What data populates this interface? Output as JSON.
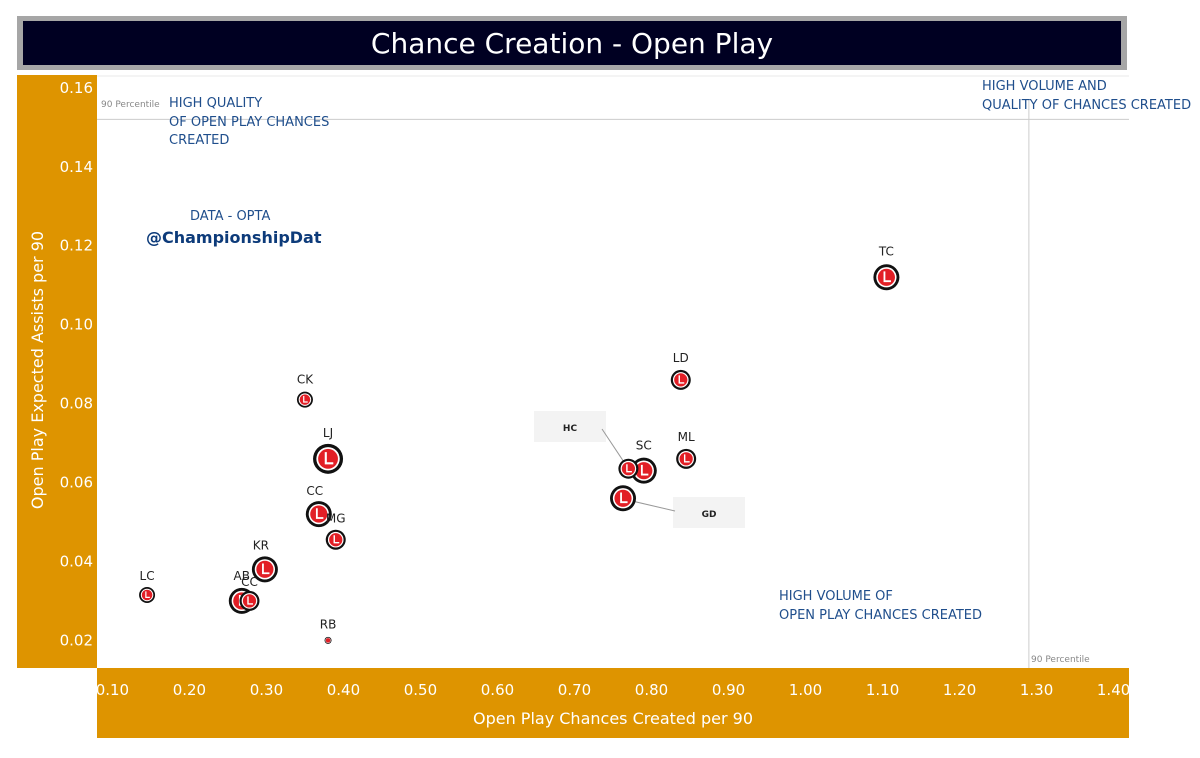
{
  "title": "Chance Creation - Open Play",
  "colors": {
    "axis_band": "#de9400",
    "title_bg": "#000022",
    "title_border": "#a6a6a6",
    "annotation": "#1f4e8c",
    "marker": "#e21f26"
  },
  "annotations": {
    "top_left": [
      "HIGH QUALITY",
      "OF OPEN PLAY CHANCES",
      "CREATED"
    ],
    "top_right": [
      "HIGH VOLUME AND",
      "QUALITY OF CHANCES CREATED"
    ],
    "bottom_right": [
      "HIGH VOLUME OF",
      "OPEN PLAY CHANCES CREATED"
    ],
    "source": "DATA - OPTA",
    "handle": "@ChampionshipDat",
    "percentile_label_y": "90 Percentile",
    "percentile_label_x": "90 Percentile"
  },
  "chart_data": {
    "type": "scatter",
    "title": "Chance Creation - Open Play",
    "xlabel": "Open Play Chances Created per 90",
    "ylabel": "Open Play Expected Assists per 90",
    "xlim": [
      0.08,
      1.42
    ],
    "ylim": [
      0.013,
      0.163
    ],
    "x_ticks": [
      "0.10",
      "0.20",
      "0.30",
      "0.40",
      "0.50",
      "0.60",
      "0.70",
      "0.80",
      "0.90",
      "1.00",
      "1.10",
      "1.20",
      "1.30",
      "1.40"
    ],
    "y_ticks": [
      "0.02",
      "0.04",
      "0.06",
      "0.08",
      "0.10",
      "0.12",
      "0.14",
      "0.16"
    ],
    "reference_lines": {
      "x_90_percentile": 1.29,
      "y_90_percentile": 0.152
    },
    "grid": false,
    "marker": "club crest",
    "points": [
      {
        "label": "TC",
        "x": 1.105,
        "y": 0.112,
        "size": "large"
      },
      {
        "label": "LD",
        "x": 0.838,
        "y": 0.086,
        "size": "medium"
      },
      {
        "label": "ML",
        "x": 0.845,
        "y": 0.066,
        "size": "medium"
      },
      {
        "label": "SC",
        "x": 0.79,
        "y": 0.063,
        "size": "large"
      },
      {
        "label": "HC",
        "x": 0.77,
        "y": 0.0635,
        "size": "medium"
      },
      {
        "label": "GD",
        "x": 0.763,
        "y": 0.056,
        "size": "large"
      },
      {
        "label": "CK",
        "x": 0.35,
        "y": 0.081,
        "size": "small"
      },
      {
        "label": "LJ",
        "x": 0.38,
        "y": 0.066,
        "size": "xlarge"
      },
      {
        "label": "CC",
        "x": 0.368,
        "y": 0.052,
        "size": "large"
      },
      {
        "label": "MG",
        "x": 0.39,
        "y": 0.0455,
        "size": "medium"
      },
      {
        "label": "KR",
        "x": 0.298,
        "y": 0.038,
        "size": "large"
      },
      {
        "label": "AB",
        "x": 0.268,
        "y": 0.03,
        "size": "large"
      },
      {
        "label": "CC",
        "x": 0.278,
        "y": 0.03,
        "size": "medium"
      },
      {
        "label": "LC",
        "x": 0.145,
        "y": 0.0315,
        "size": "small"
      },
      {
        "label": "RB",
        "x": 0.38,
        "y": 0.02,
        "size": "tiny"
      }
    ]
  }
}
